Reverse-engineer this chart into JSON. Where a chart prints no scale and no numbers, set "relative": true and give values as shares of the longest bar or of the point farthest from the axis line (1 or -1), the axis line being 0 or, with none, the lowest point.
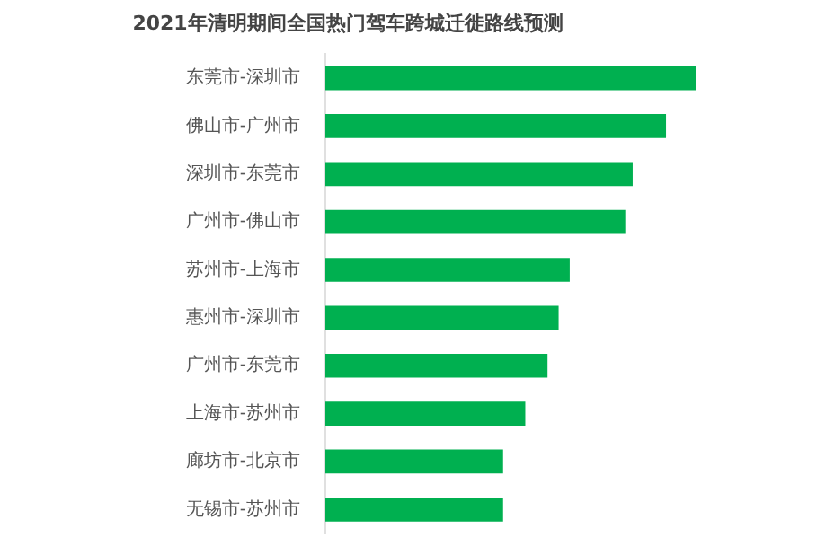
{
  "chart_data": {
    "type": "bar",
    "orientation": "horizontal",
    "relative": true,
    "title": "2021年清明期间全国热门驾车跨城迁徙路线预测",
    "categories": [
      "东莞市-深圳市",
      "佛山市-广州市",
      "深圳市-东莞市",
      "广州市-佛山市",
      "苏州市-上海市",
      "惠州市-深圳市",
      "广州市-东莞市",
      "上海市-苏州市",
      "廊坊市-北京市",
      "无锡市-苏州市"
    ],
    "values": [
      1,
      0.92,
      0.83,
      0.81,
      0.66,
      0.63,
      0.6,
      0.54,
      0.48,
      0.48
    ],
    "color": "#00b050"
  }
}
